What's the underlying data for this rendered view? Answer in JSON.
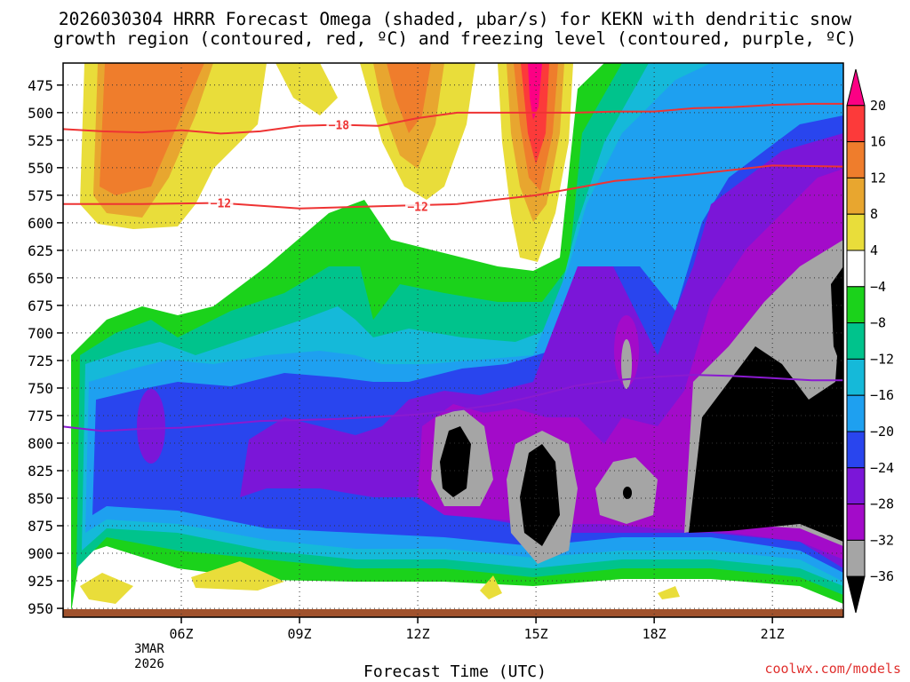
{
  "chart_data": {
    "type": "heatmap",
    "title_line1": "2026030304 HRRR Forecast Omega (shaded, μbar/s) for KEKN with dendritic snow",
    "title_line2": "growth region (contoured, red, ºC) and freezing level (contoured, purple, ºC)",
    "xlabel": "Forecast Time (UTC)",
    "credit": "coolwx.com/models",
    "x_ticks": [
      {
        "label": "06Z",
        "hour": 6
      },
      {
        "label": "09Z",
        "hour": 9
      },
      {
        "label": "12Z",
        "hour": 12
      },
      {
        "label": "15Z",
        "hour": 15
      },
      {
        "label": "18Z",
        "hour": 18
      },
      {
        "label": "21Z",
        "hour": 21
      }
    ],
    "date_label_line1": "3MAR",
    "date_label_line2": "2026",
    "x_range_hours": [
      3,
      22.8
    ],
    "y_axis": "pressure (mb)",
    "y_ticks": [
      475,
      500,
      525,
      550,
      575,
      600,
      625,
      650,
      675,
      700,
      725,
      750,
      775,
      800,
      825,
      850,
      875,
      900,
      925,
      950
    ],
    "y_range_mb": [
      455,
      958
    ],
    "colorbar": {
      "labels": [
        "20",
        "16",
        "12",
        "8",
        "4",
        "−4",
        "−8",
        "−12",
        "−16",
        "−20",
        "−24",
        "−28",
        "−32",
        "−36"
      ],
      "colors": [
        "#fc0084",
        "#fc3a3a",
        "#ef7d2c",
        "#e8a62f",
        "#e9dd3a",
        "#ffffff",
        "#1bd21b",
        "#00c38c",
        "#15b9d9",
        "#1ea0f0",
        "#2945ee",
        "#7b16d8",
        "#a30bc9",
        "#a5a5a5",
        "#000000"
      ]
    },
    "contours": {
      "dgz_minus18": {
        "label": "−18",
        "hours": [
          3,
          4,
          5,
          6,
          7,
          8,
          9,
          10,
          11,
          12,
          13,
          14,
          15,
          16,
          17,
          18,
          19,
          20,
          21,
          22,
          22.8
        ],
        "mb": [
          515,
          517,
          518,
          516,
          519,
          517,
          512,
          511,
          512,
          505,
          500,
          500,
          500,
          500,
          499,
          499,
          496,
          495,
          493,
          492,
          492
        ]
      },
      "dgz_minus12": {
        "label": "−12",
        "hours": [
          3,
          5,
          7,
          9,
          11,
          13,
          15,
          17,
          19,
          21,
          22.8
        ],
        "mb": [
          583,
          583,
          582,
          587,
          585,
          583,
          575,
          562,
          556,
          548,
          549
        ]
      },
      "freezing_level": {
        "hours": [
          3,
          4,
          5,
          6,
          7,
          8,
          9,
          10,
          11,
          12,
          13,
          14,
          15,
          16,
          17,
          18,
          19,
          20,
          21,
          22,
          22.8
        ],
        "mb": [
          785,
          789,
          787,
          786,
          783,
          780,
          779,
          778,
          776,
          774,
          770,
          765,
          757,
          748,
          743,
          740,
          738,
          739,
          741,
          743,
          743
        ]
      }
    }
  }
}
